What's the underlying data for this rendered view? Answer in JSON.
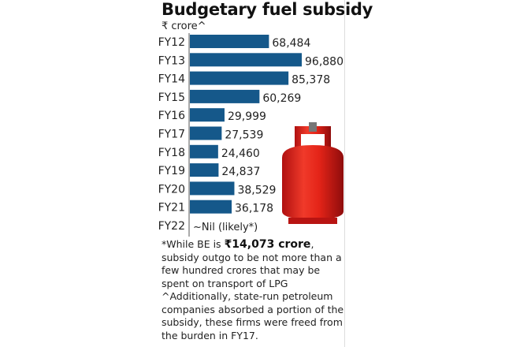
{
  "chart_data": {
    "type": "bar",
    "orientation": "horizontal",
    "title": "Budgetary fuel subsidy",
    "unit": "₹ crore^",
    "categories": [
      "FY12",
      "FY13",
      "FY14",
      "FY15",
      "FY16",
      "FY17",
      "FY18",
      "FY19",
      "FY20",
      "FY21",
      "FY22"
    ],
    "values": [
      68484,
      96880,
      85378,
      60269,
      29999,
      27539,
      24460,
      24837,
      38529,
      36178,
      0
    ],
    "value_labels": [
      "68,484",
      "96,880",
      "85,378",
      "60,269",
      "29,999",
      "27,539",
      "24,460",
      "24,837",
      "38,529",
      "36,178",
      "~Nil (likely*)"
    ],
    "xlim": [
      0,
      96880
    ],
    "bar_color": "#15588a"
  },
  "note": {
    "prefix": "*While BE is ",
    "bold": "₹14,073 crore",
    "suffix": ", subsidy outgo to be not more than a few hundred crores that may be spent on transport of LPG",
    "footnote": "^Additionally, state-run petroleum companies absorbed a portion of the subsidy, these firms were freed from the burden in FY17."
  }
}
